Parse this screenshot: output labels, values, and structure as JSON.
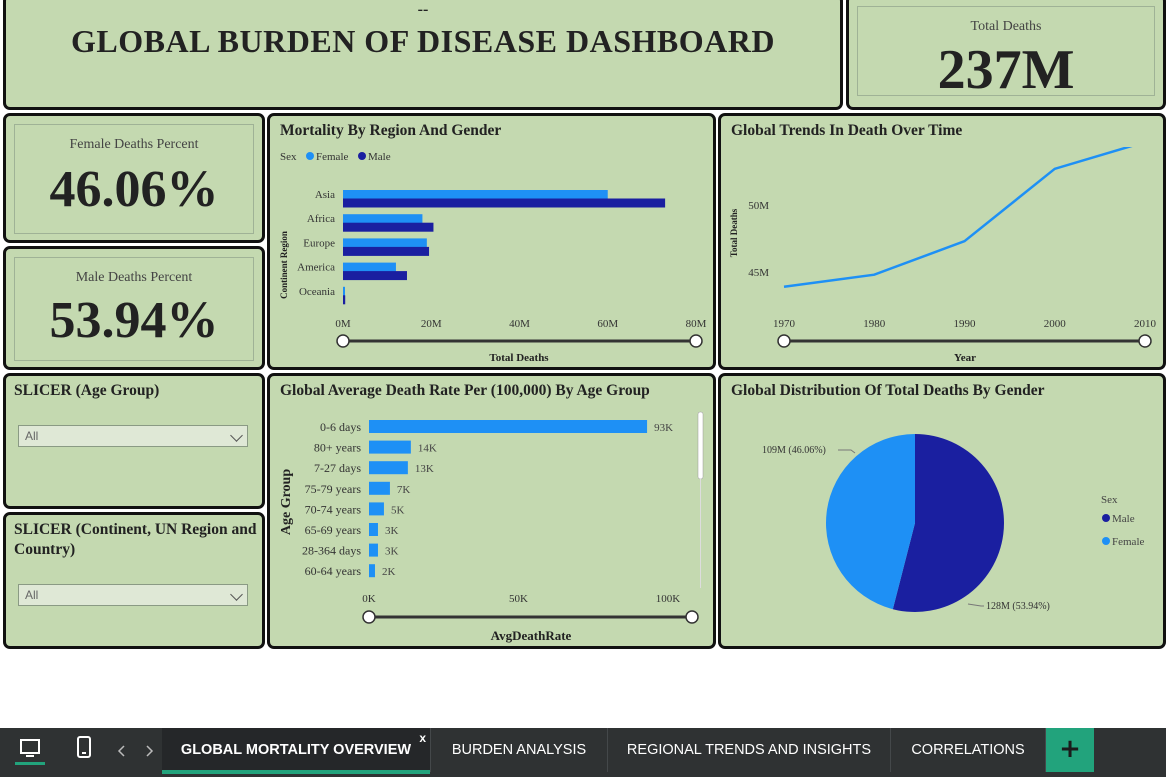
{
  "header": {
    "decoration": "--",
    "title": "GLOBAL BURDEN OF DISEASE DASHBOARD"
  },
  "cards": {
    "total_deaths": {
      "label": "Total Deaths",
      "value": "237M"
    },
    "female_percent": {
      "label": "Female Deaths Percent",
      "value": "46.06%"
    },
    "male_percent": {
      "label": "Male Deaths Percent",
      "value": "53.94%"
    }
  },
  "slicers": {
    "age_group": {
      "title": "SLICER (Age Group)",
      "value": "All"
    },
    "region": {
      "title": "SLICER (Continent, UN Region and Country)",
      "value": "All"
    }
  },
  "colors": {
    "female": "#1e90f5",
    "male": "#1a1fa0",
    "tile_bg": "#c4d9b0",
    "accent": "#22a37c"
  },
  "chart_data": [
    {
      "type": "bar",
      "title": "Mortality By Region And Gender",
      "legend_title": "Sex",
      "legend_position": "top-left",
      "categories": [
        "Asia",
        "Africa",
        "Europe",
        "America",
        "Oceania"
      ],
      "series": [
        {
          "name": "Female",
          "values": [
            60,
            18,
            19,
            12,
            0.4
          ]
        },
        {
          "name": "Male",
          "values": [
            73,
            20.5,
            19.5,
            14.5,
            0.5
          ]
        }
      ],
      "xlabel": "Total Deaths",
      "ylabel": "Continent Region",
      "xticks": [
        "0M",
        "20M",
        "40M",
        "60M",
        "80M"
      ],
      "xlim": [
        0,
        80
      ]
    },
    {
      "type": "line",
      "title": "Global Trends In Death Over Time",
      "x": [
        1970,
        1980,
        1990,
        2000,
        2010
      ],
      "values": [
        43.9,
        44.8,
        47.3,
        52.7,
        54.7
      ],
      "xticks": [
        "1970",
        "1980",
        "1990",
        "2000",
        "2010"
      ],
      "yticks": [
        "45M",
        "50M"
      ],
      "xlabel": "Year",
      "ylabel": "Total Deaths",
      "xlim": [
        1970,
        2010
      ],
      "ylim": [
        43,
        55
      ]
    },
    {
      "type": "bar",
      "title": "Global Average Death Rate Per (100,000) By Age Group",
      "categories": [
        "0-6 days",
        "80+ years",
        "7-27 days",
        "75-79 years",
        "70-74 years",
        "65-69 years",
        "28-364 days",
        "60-64 years"
      ],
      "values": [
        93,
        14,
        13,
        7,
        5,
        3,
        3,
        2
      ],
      "data_labels": [
        "93K",
        "14K",
        "13K",
        "7K",
        "5K",
        "3K",
        "3K",
        "2K"
      ],
      "xticks": [
        "0K",
        "50K",
        "100K"
      ],
      "xlabel": "AvgDeathRate",
      "ylabel": "Age Group",
      "xlim": [
        0,
        100
      ]
    },
    {
      "type": "pie",
      "title": "Global Distribution Of Total Deaths By Gender",
      "legend_title": "Sex",
      "legend_position": "right",
      "categories": [
        "Male",
        "Female"
      ],
      "values": [
        128,
        109
      ],
      "data_labels": [
        "128M (53.94%)",
        "109M (46.06%)"
      ],
      "legend": [
        "Male",
        "Female"
      ]
    }
  ],
  "taskbar": {
    "icons": [
      "desktop-icon",
      "phone-icon",
      "prev-arrow-icon",
      "next-arrow-icon"
    ],
    "tabs": [
      {
        "label": "GLOBAL MORTALITY OVERVIEW",
        "close": "x"
      },
      {
        "label": "BURDEN ANALYSIS"
      },
      {
        "label": "REGIONAL TRENDS AND INSIGHTS"
      },
      {
        "label": "CORRELATIONS"
      }
    ],
    "add_label": "+"
  }
}
